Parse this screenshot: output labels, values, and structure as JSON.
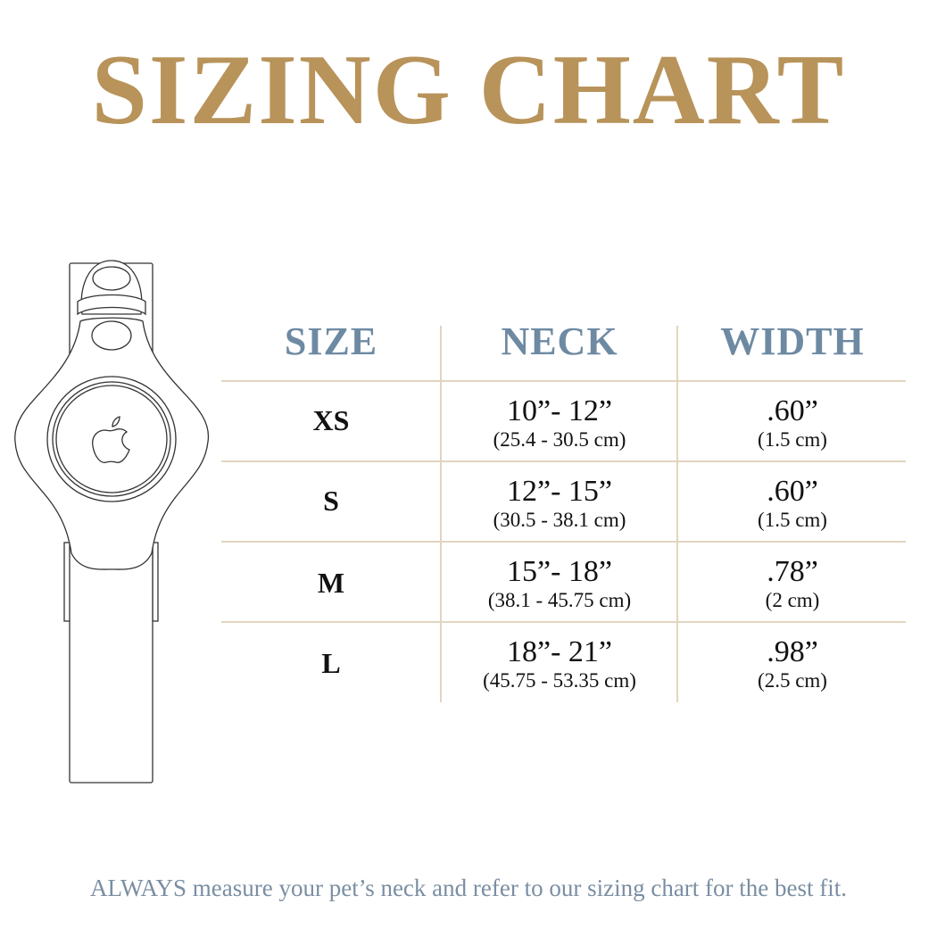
{
  "title": "SIZING CHART",
  "colors": {
    "title": "#b8935a",
    "header": "#6e8aa3",
    "divider": "#e1d5bf",
    "footer": "#7a8ea3"
  },
  "illustration": {
    "icon": "airtag-collar-icon"
  },
  "table": {
    "headers": [
      "SIZE",
      "NECK",
      "WIDTH"
    ],
    "rows": [
      {
        "size": "XS",
        "neck": "10”- 12”",
        "neck_cm": "(25.4 - 30.5 cm)",
        "width": ".60”",
        "width_cm": "(1.5 cm)"
      },
      {
        "size": "S",
        "neck": "12”- 15”",
        "neck_cm": "(30.5 - 38.1 cm)",
        "width": ".60”",
        "width_cm": "(1.5 cm)"
      },
      {
        "size": "M",
        "neck": "15”- 18”",
        "neck_cm": "(38.1 - 45.75 cm)",
        "width": ".78”",
        "width_cm": "(2 cm)"
      },
      {
        "size": "L",
        "neck": "18”- 21”",
        "neck_cm": "(45.75 - 53.35 cm)",
        "width": ".98”",
        "width_cm": "(2.5 cm)"
      }
    ]
  },
  "footer": "ALWAYS measure your pet’s neck and refer to our sizing chart for the best fit."
}
